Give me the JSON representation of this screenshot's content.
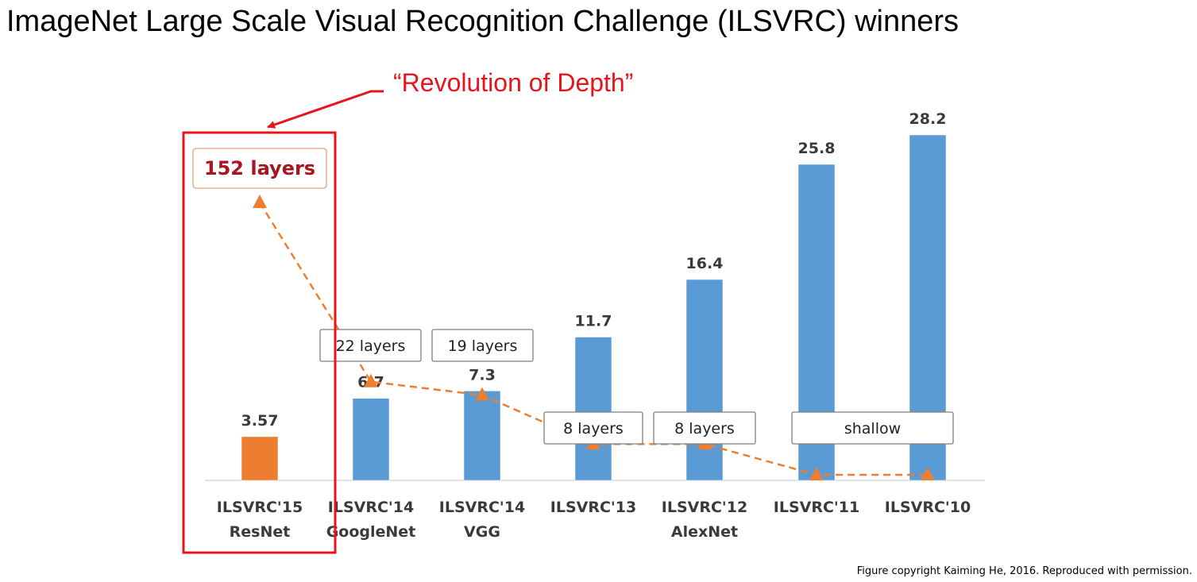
{
  "page": {
    "title": "ImageNet Large Scale Visual Recognition Challenge (ILSVRC) winners",
    "copyright": "Figure copyright Kaiming He, 2016. Reproduced with permission.",
    "callout": "“Revolution of Depth”",
    "colors": {
      "callout_red": "#e8141c",
      "highlight_text": "#a8151e"
    }
  },
  "chart_data": {
    "type": "bar",
    "categories": [
      [
        "ILSVRC'15",
        "ResNet"
      ],
      [
        "ILSVRC'14",
        "GoogleNet"
      ],
      [
        "ILSVRC'14",
        "VGG"
      ],
      [
        "ILSVRC'13"
      ],
      [
        "ILSVRC'12",
        "AlexNet"
      ],
      [
        "ILSVRC'11"
      ],
      [
        "ILSVRC'10"
      ]
    ],
    "values": [
      3.57,
      6.7,
      7.3,
      11.7,
      16.4,
      25.8,
      28.2
    ],
    "value_labels": [
      "3.57",
      "6.7",
      "7.3",
      "11.7",
      "16.4",
      "25.8",
      "28.2"
    ],
    "bar_colors": [
      "#ed7d31",
      "#5b9bd5",
      "#5b9bd5",
      "#5b9bd5",
      "#5b9bd5",
      "#5b9bd5",
      "#5b9bd5"
    ],
    "ylim": [
      0,
      28.2
    ],
    "depth_line": {
      "style": "dashed",
      "marker": "triangle",
      "color": "#ed7d31",
      "values": [
        152,
        22,
        19,
        8,
        8,
        0,
        0
      ]
    },
    "layer_labels": [
      {
        "text": "152 layers",
        "categories": [
          0
        ],
        "highlight": true
      },
      {
        "text": "22 layers",
        "categories": [
          1
        ]
      },
      {
        "text": "19 layers",
        "categories": [
          2
        ]
      },
      {
        "text": "8 layers",
        "categories": [
          3
        ]
      },
      {
        "text": "8 layers",
        "categories": [
          4
        ]
      },
      {
        "text": "shallow",
        "categories": [
          5,
          6
        ]
      }
    ],
    "title": "",
    "xlabel": "",
    "ylabel": "",
    "grid": false,
    "legend": "none"
  }
}
